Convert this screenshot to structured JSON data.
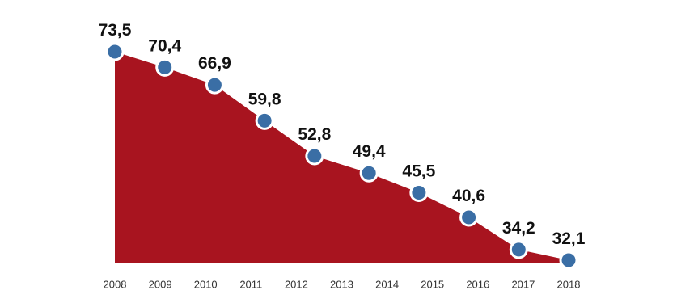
{
  "chart_data": {
    "type": "area",
    "x": [
      2008,
      2009.1,
      2010.2,
      2011.3,
      2012.4,
      2013.6,
      2014.7,
      2015.8,
      2016.9,
      2018
    ],
    "values": [
      73.5,
      70.4,
      66.9,
      59.8,
      52.8,
      49.4,
      45.5,
      40.6,
      34.2,
      32.1
    ],
    "value_labels": [
      "73,5",
      "70,4",
      "66,9",
      "59,8",
      "52,8",
      "49,4",
      "45,5",
      "40,6",
      "34,2",
      "32,1"
    ],
    "xlim": [
      2008,
      2018
    ],
    "xticks": [
      2008,
      2009,
      2010,
      2011,
      2012,
      2013,
      2014,
      2015,
      2016,
      2017,
      2018
    ],
    "color": "#a8141f",
    "marker_color": "#3a6ea5"
  }
}
